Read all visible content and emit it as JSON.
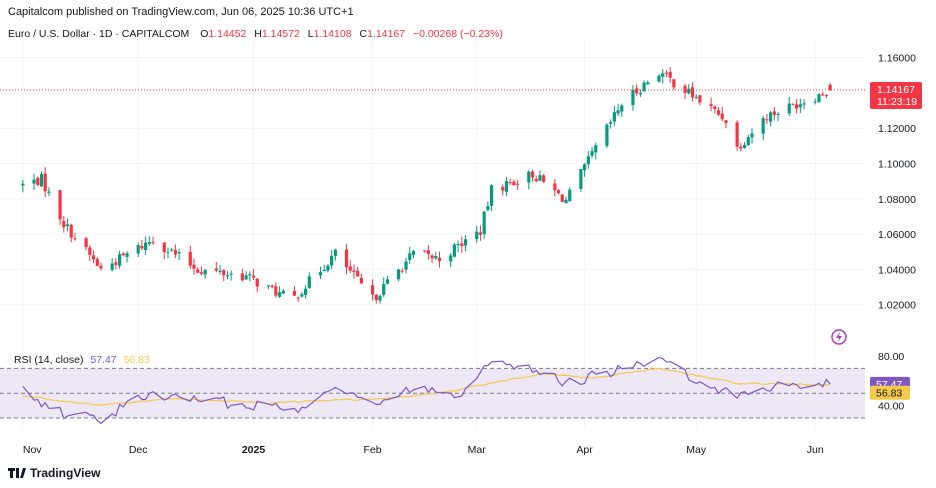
{
  "publisher_line": "Capitalcom published on TradingView.com, Jun 06, 2025 10:36 UTC+1",
  "legend": {
    "symbol": "Euro / U.S. Dollar · 1D · CAPITALCOM",
    "o_label": "O",
    "o_value": "1.14452",
    "h_label": "H",
    "h_value": "1.14572",
    "l_label": "L",
    "l_value": "1.14108",
    "c_label": "C",
    "c_value": "1.14167",
    "change": "−0.00268 (−0.23%)"
  },
  "rsi_legend": {
    "label": "RSI (14, close)",
    "rsi_value": "57.47",
    "ma_value": "56.83"
  },
  "footer": {
    "brand": "TradingView"
  },
  "colors": {
    "up": "#089981",
    "down": "#f23645",
    "rsi": "#7e57c2",
    "rsi_ma": "#f7c948",
    "band_fill": "#ede7f6"
  },
  "chart_data": [
    {
      "type": "candlestick",
      "title": "Euro / U.S. Dollar · 1D · CAPITALCOM",
      "xlabel": "",
      "ylabel": "",
      "x_tick_labels": [
        "Nov",
        "Dec",
        "2025",
        "Feb",
        "Mar",
        "Apr",
        "May",
        "Jun"
      ],
      "y_tick_labels": [
        "1.02000",
        "1.04000",
        "1.06000",
        "1.08000",
        "1.10000",
        "1.12000",
        "1.14000",
        "1.16000"
      ],
      "ylim": [
        1.0,
        1.17
      ],
      "last_price": "1.14167",
      "countdown": "11:23:19",
      "trend_anchors": [
        {
          "d": "2024-11-01",
          "c": 1.088
        },
        {
          "d": "2024-11-06",
          "c": 1.091
        },
        {
          "d": "2024-11-12",
          "c": 1.066
        },
        {
          "d": "2024-11-22",
          "c": 1.04
        },
        {
          "d": "2024-12-06",
          "c": 1.057
        },
        {
          "d": "2024-12-18",
          "c": 1.04
        },
        {
          "d": "2024-12-31",
          "c": 1.036
        },
        {
          "d": "2025-01-10",
          "c": 1.025
        },
        {
          "d": "2025-01-13",
          "c": 1.024
        },
        {
          "d": "2025-01-24",
          "c": 1.049
        },
        {
          "d": "2025-02-03",
          "c": 1.023
        },
        {
          "d": "2025-02-14",
          "c": 1.049
        },
        {
          "d": "2025-02-21",
          "c": 1.046
        },
        {
          "d": "2025-03-04",
          "c": 1.062
        },
        {
          "d": "2025-03-07",
          "c": 1.085
        },
        {
          "d": "2025-03-18",
          "c": 1.094
        },
        {
          "d": "2025-03-27",
          "c": 1.079
        },
        {
          "d": "2025-04-03",
          "c": 1.105
        },
        {
          "d": "2025-04-11",
          "c": 1.134
        },
        {
          "d": "2025-04-21",
          "c": 1.152
        },
        {
          "d": "2025-05-09",
          "c": 1.125
        },
        {
          "d": "2025-05-12",
          "c": 1.109
        },
        {
          "d": "2025-05-20",
          "c": 1.127
        },
        {
          "d": "2025-06-03",
          "c": 1.139
        },
        {
          "d": "2025-06-06",
          "c": 1.14167
        }
      ]
    },
    {
      "type": "line",
      "title": "RSI (14, close)",
      "y_tick_labels": [
        "40.00",
        "80.00"
      ],
      "ylim": [
        22,
        88
      ],
      "bands": [
        30,
        50,
        70
      ],
      "series": [
        {
          "name": "RSI",
          "last": 57.47,
          "anchors": [
            {
              "d": "2024-11-01",
              "v": 52
            },
            {
              "d": "2024-11-12",
              "v": 33
            },
            {
              "d": "2024-11-22",
              "v": 30
            },
            {
              "d": "2024-12-06",
              "v": 50
            },
            {
              "d": "2024-12-18",
              "v": 44
            },
            {
              "d": "2025-01-06",
              "v": 40
            },
            {
              "d": "2025-01-13",
              "v": 36
            },
            {
              "d": "2025-01-24",
              "v": 58
            },
            {
              "d": "2025-02-03",
              "v": 39
            },
            {
              "d": "2025-02-14",
              "v": 55
            },
            {
              "d": "2025-02-27",
              "v": 50
            },
            {
              "d": "2025-03-05",
              "v": 73
            },
            {
              "d": "2025-03-14",
              "v": 74
            },
            {
              "d": "2025-03-27",
              "v": 58
            },
            {
              "d": "2025-04-03",
              "v": 64
            },
            {
              "d": "2025-04-21",
              "v": 76
            },
            {
              "d": "2025-05-12",
              "v": 47
            },
            {
              "d": "2025-05-23",
              "v": 57
            },
            {
              "d": "2025-06-06",
              "v": 57.47
            }
          ]
        },
        {
          "name": "RSI-based MA",
          "last": 56.83,
          "anchors": [
            {
              "d": "2024-11-01",
              "v": 48
            },
            {
              "d": "2024-11-22",
              "v": 40
            },
            {
              "d": "2024-12-10",
              "v": 46
            },
            {
              "d": "2025-01-06",
              "v": 42
            },
            {
              "d": "2025-01-20",
              "v": 44
            },
            {
              "d": "2025-02-03",
              "v": 45
            },
            {
              "d": "2025-02-21",
              "v": 50
            },
            {
              "d": "2025-03-21",
              "v": 66
            },
            {
              "d": "2025-04-03",
              "v": 62
            },
            {
              "d": "2025-04-21",
              "v": 70
            },
            {
              "d": "2025-05-12",
              "v": 58
            },
            {
              "d": "2025-06-06",
              "v": 56.83
            }
          ]
        }
      ]
    }
  ]
}
